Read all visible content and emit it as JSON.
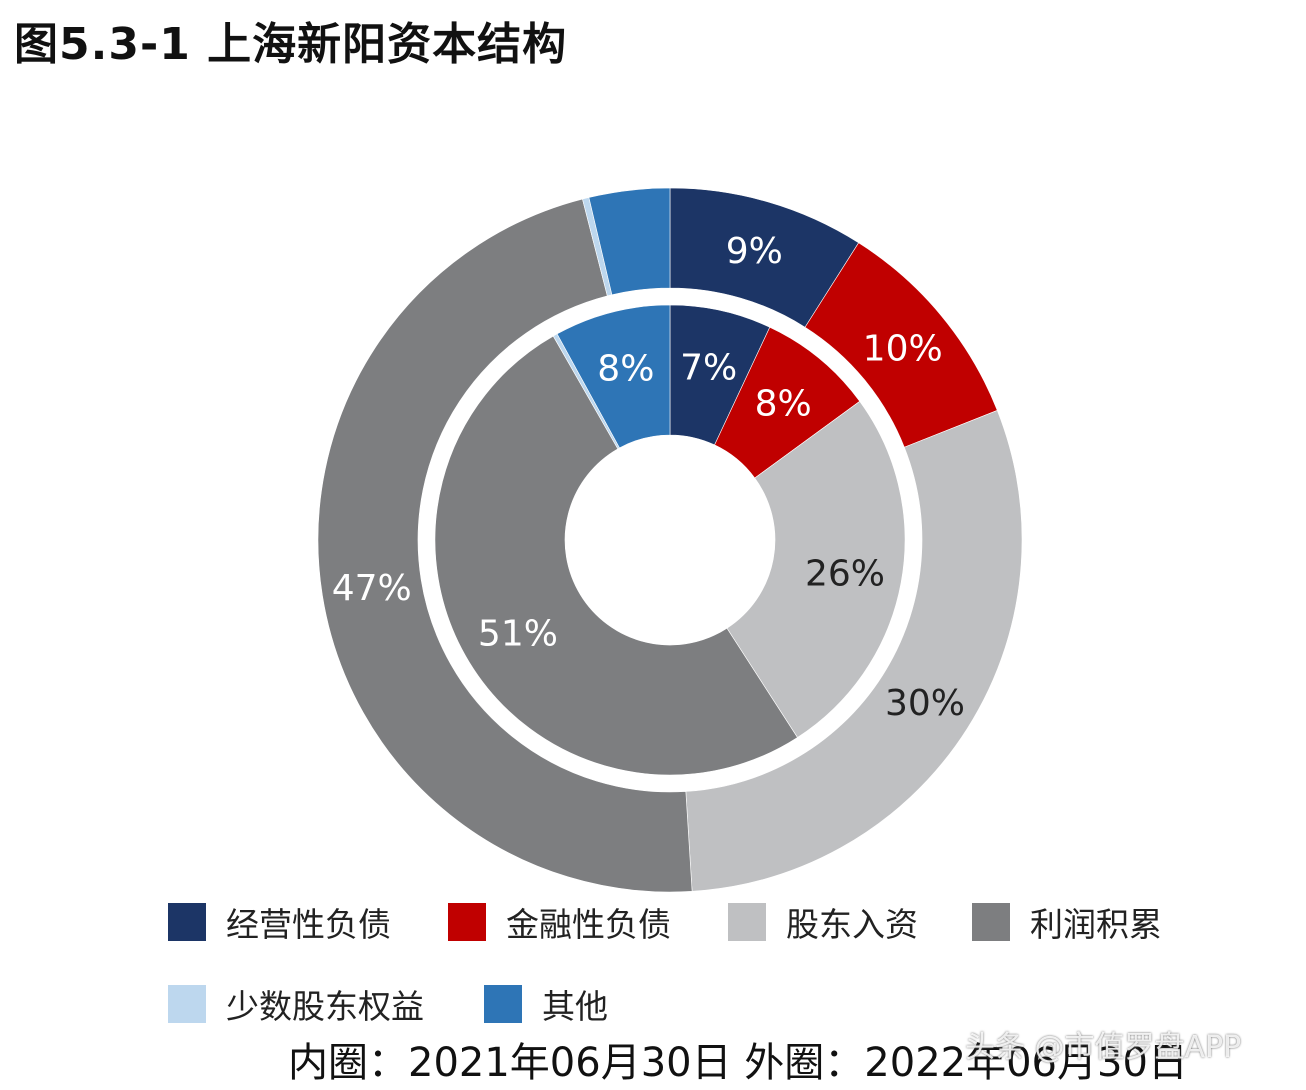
{
  "title": "图5.3-1 上海新阳资本结构",
  "footnote": "内圈：2021年06月30日 外圈：2022年06月30日",
  "watermark": "头条 @市值罗盘APP",
  "legend": [
    {
      "label": "经营性负债",
      "color": "#1c3566"
    },
    {
      "label": "金融性负债",
      "color": "#c00000"
    },
    {
      "label": "股东入资",
      "color": "#bfc0c2"
    },
    {
      "label": "利润积累",
      "color": "#7d7e80"
    },
    {
      "label": "少数股东权益",
      "color": "#bdd7ee"
    },
    {
      "label": "其他",
      "color": "#2e75b6"
    }
  ],
  "chart_data": {
    "type": "donut",
    "title": "图5.3-1 上海新阳资本结构",
    "categories": [
      "经营性负债",
      "金融性负债",
      "股东入资",
      "利润积累",
      "少数股东权益",
      "其他"
    ],
    "colors": [
      "#1c3566",
      "#c00000",
      "#bfc0c2",
      "#7d7e80",
      "#bdd7ee",
      "#2e75b6"
    ],
    "series": [
      {
        "name": "内圈：2021年06月30日",
        "ring": "inner",
        "values": [
          7,
          8,
          26,
          51,
          0.3,
          8
        ],
        "labels": [
          "7%",
          "8%",
          "26%",
          "51%",
          "",
          "8%"
        ]
      },
      {
        "name": "外圈：2022年06月30日",
        "ring": "outer",
        "values": [
          9,
          10,
          30,
          47,
          0.3,
          3.7
        ],
        "labels": [
          "9%",
          "10%",
          "30%",
          "47%",
          "",
          ""
        ]
      }
    ],
    "legend_position": "bottom",
    "label_colors": {
      "dark_segments": "#ffffff",
      "light_segments": "#222222"
    }
  }
}
